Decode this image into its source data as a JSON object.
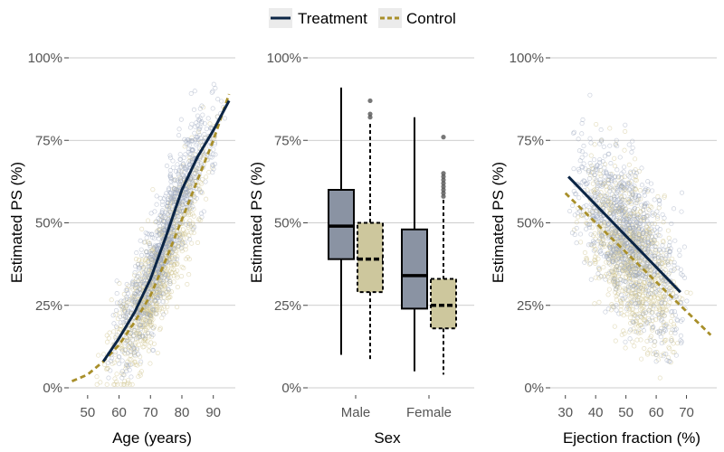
{
  "colors": {
    "treatment": "#0b2545",
    "control": "#a88f2a",
    "treatment_box": "#8a93a3",
    "control_box": "#cdc79d",
    "treatment_points": "#9aa6bd",
    "control_points": "#cfc58f",
    "grid": "#bdbdbd"
  },
  "legend": {
    "position": "top",
    "entries": [
      {
        "name": "Treatment",
        "line": "solid"
      },
      {
        "name": "Control",
        "line": "dashed"
      }
    ]
  },
  "chart_data": [
    {
      "type": "scatter",
      "xlabel": "Age (years)",
      "ylabel": "Estimated PS (%)",
      "xlim": [
        44,
        97
      ],
      "ylim": [
        0,
        100
      ],
      "xticks": [
        "50",
        "60",
        "70",
        "80",
        "90"
      ],
      "yticks": [
        "0%",
        "25%",
        "50%",
        "75%",
        "100%"
      ],
      "grid": "horizontal",
      "series": [
        {
          "name": "Treatment",
          "smooth_x": [
            55,
            60,
            65,
            70,
            75,
            80,
            85,
            90,
            95
          ],
          "smooth_y": [
            8,
            15,
            23,
            33,
            46,
            60,
            70,
            78,
            87
          ]
        },
        {
          "name": "Control",
          "smooth_x": [
            45,
            50,
            55,
            60,
            65,
            70,
            75,
            80,
            85,
            90,
            95
          ],
          "smooth_y": [
            2,
            4,
            8,
            13,
            20,
            28,
            39,
            51,
            63,
            75,
            89
          ]
        }
      ]
    },
    {
      "type": "box",
      "xlabel": "Sex",
      "ylabel": "Estimated PS (%)",
      "ylim": [
        0,
        100
      ],
      "categories": [
        "Male",
        "Female"
      ],
      "yticks": [
        "0%",
        "25%",
        "50%",
        "75%",
        "100%"
      ],
      "grid": "horizontal",
      "series": [
        {
          "name": "Treatment",
          "boxes": [
            {
              "whisker_low": 10,
              "q1": 39,
              "median": 49,
              "q3": 60,
              "whisker_high": 91,
              "outliers": []
            },
            {
              "whisker_low": 5,
              "q1": 24,
              "median": 34,
              "q3": 48,
              "whisker_high": 82,
              "outliers": []
            }
          ]
        },
        {
          "name": "Control",
          "boxes": [
            {
              "whisker_low": 8,
              "q1": 29,
              "median": 39,
              "q3": 50,
              "whisker_high": 80,
              "outliers": [
                82,
                83,
                87
              ]
            },
            {
              "whisker_low": 4,
              "q1": 18,
              "median": 25,
              "q3": 33,
              "whisker_high": 57,
              "outliers": [
                58,
                59,
                60,
                61,
                62,
                63,
                64,
                65,
                76
              ]
            }
          ]
        }
      ]
    },
    {
      "type": "scatter",
      "xlabel": "Ejection fraction (%)",
      "ylabel": "Estimated PS (%)",
      "xlim": [
        25,
        80
      ],
      "ylim": [
        0,
        100
      ],
      "xticks": [
        "30",
        "40",
        "50",
        "60",
        "70"
      ],
      "yticks": [
        "0%",
        "25%",
        "50%",
        "75%",
        "100%"
      ],
      "grid": "horizontal",
      "series": [
        {
          "name": "Treatment",
          "fit_x": [
            31,
            68
          ],
          "fit_y": [
            64,
            29
          ]
        },
        {
          "name": "Control",
          "fit_x": [
            30,
            78
          ],
          "fit_y": [
            59,
            16
          ]
        }
      ]
    }
  ]
}
